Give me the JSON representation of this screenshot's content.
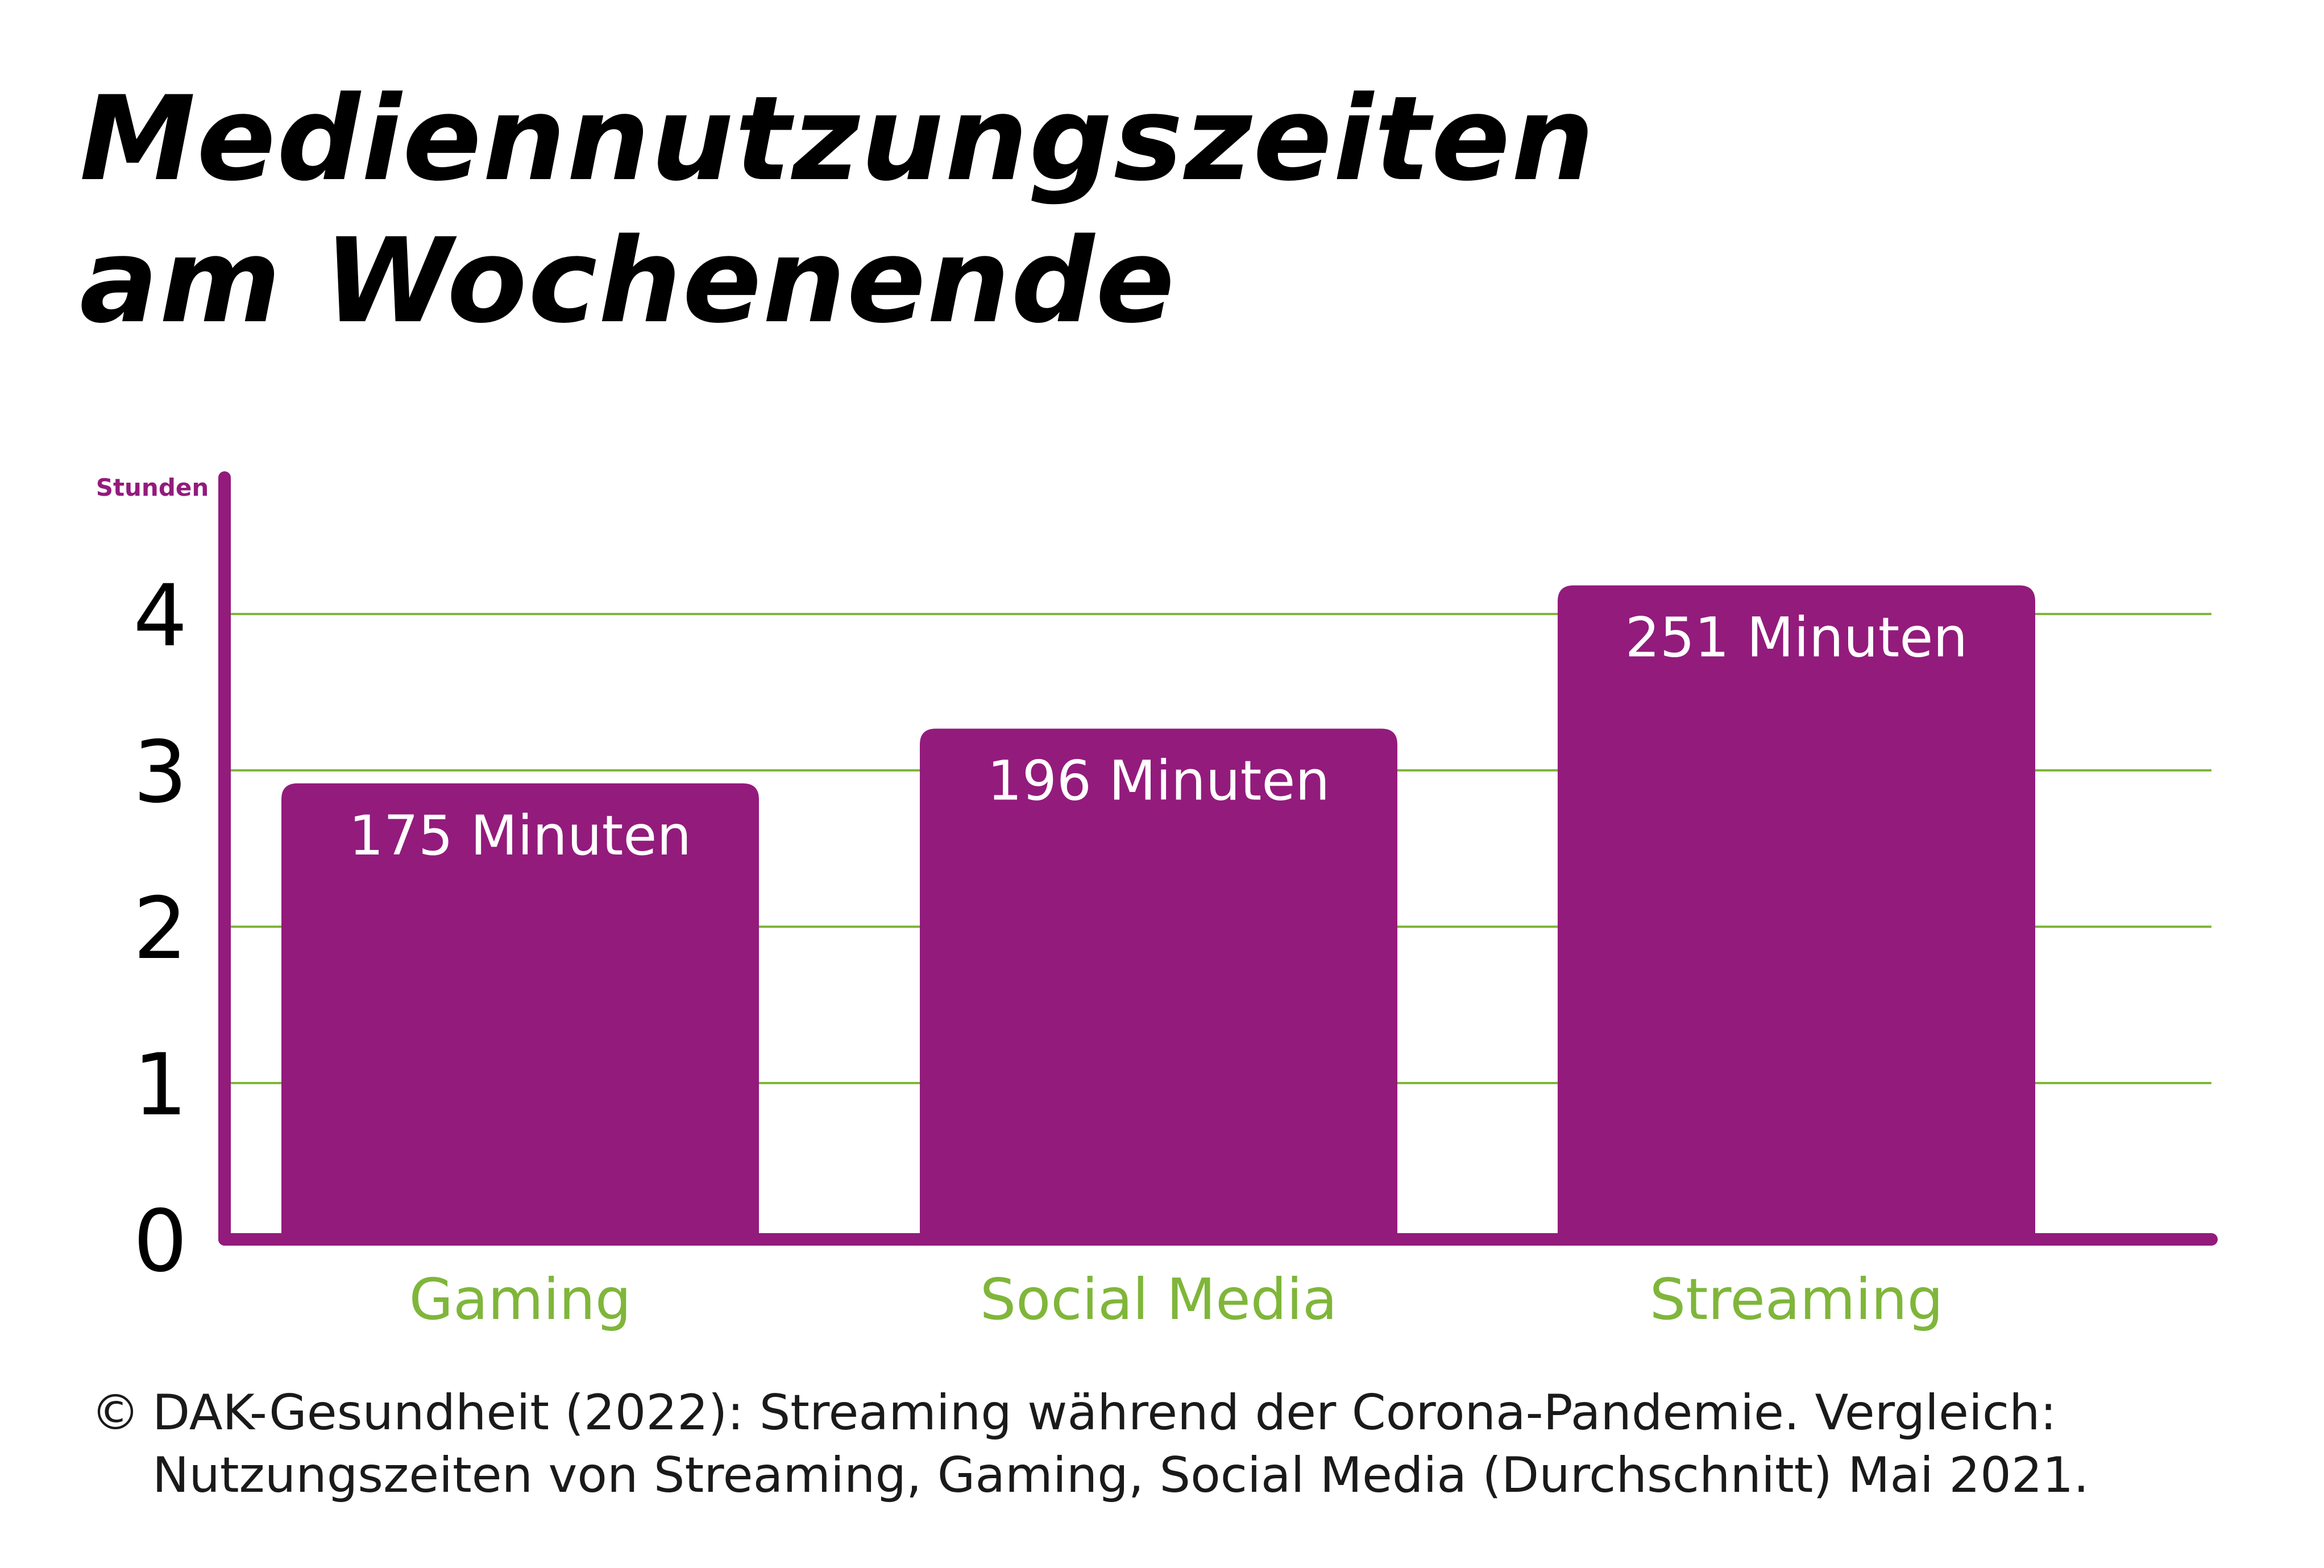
{
  "title_line1": "Mediennutzungszeiten",
  "title_line2": "am Wochenende",
  "source": {
    "symbol": "©",
    "line1": "DAK-Gesundheit (2022): Streaming während der Corona-Pandemie. Vergleich:",
    "line2": "Nutzungszeiten von Streaming, Gaming, Social Media (Durchschnitt) Mai 2021."
  },
  "colors": {
    "bar": "#931b7c",
    "grid": "#7fb63a",
    "category_label": "#7fb63a",
    "axis_title": "#931b7c"
  },
  "chart_data": {
    "type": "bar",
    "title": "Mediennutzungszeiten am Wochenende",
    "ylabel": "Stunden",
    "ylim": [
      0,
      4.5
    ],
    "yticks": [
      "0",
      "1",
      "2",
      "3",
      "4"
    ],
    "grid": true,
    "categories": [
      "Gaming",
      "Social Media",
      "Streaming"
    ],
    "values": [
      175,
      196,
      251
    ],
    "value_unit": "Minuten",
    "data_labels": [
      "175 Minuten",
      "196 Minuten",
      "251 Minuten"
    ]
  }
}
